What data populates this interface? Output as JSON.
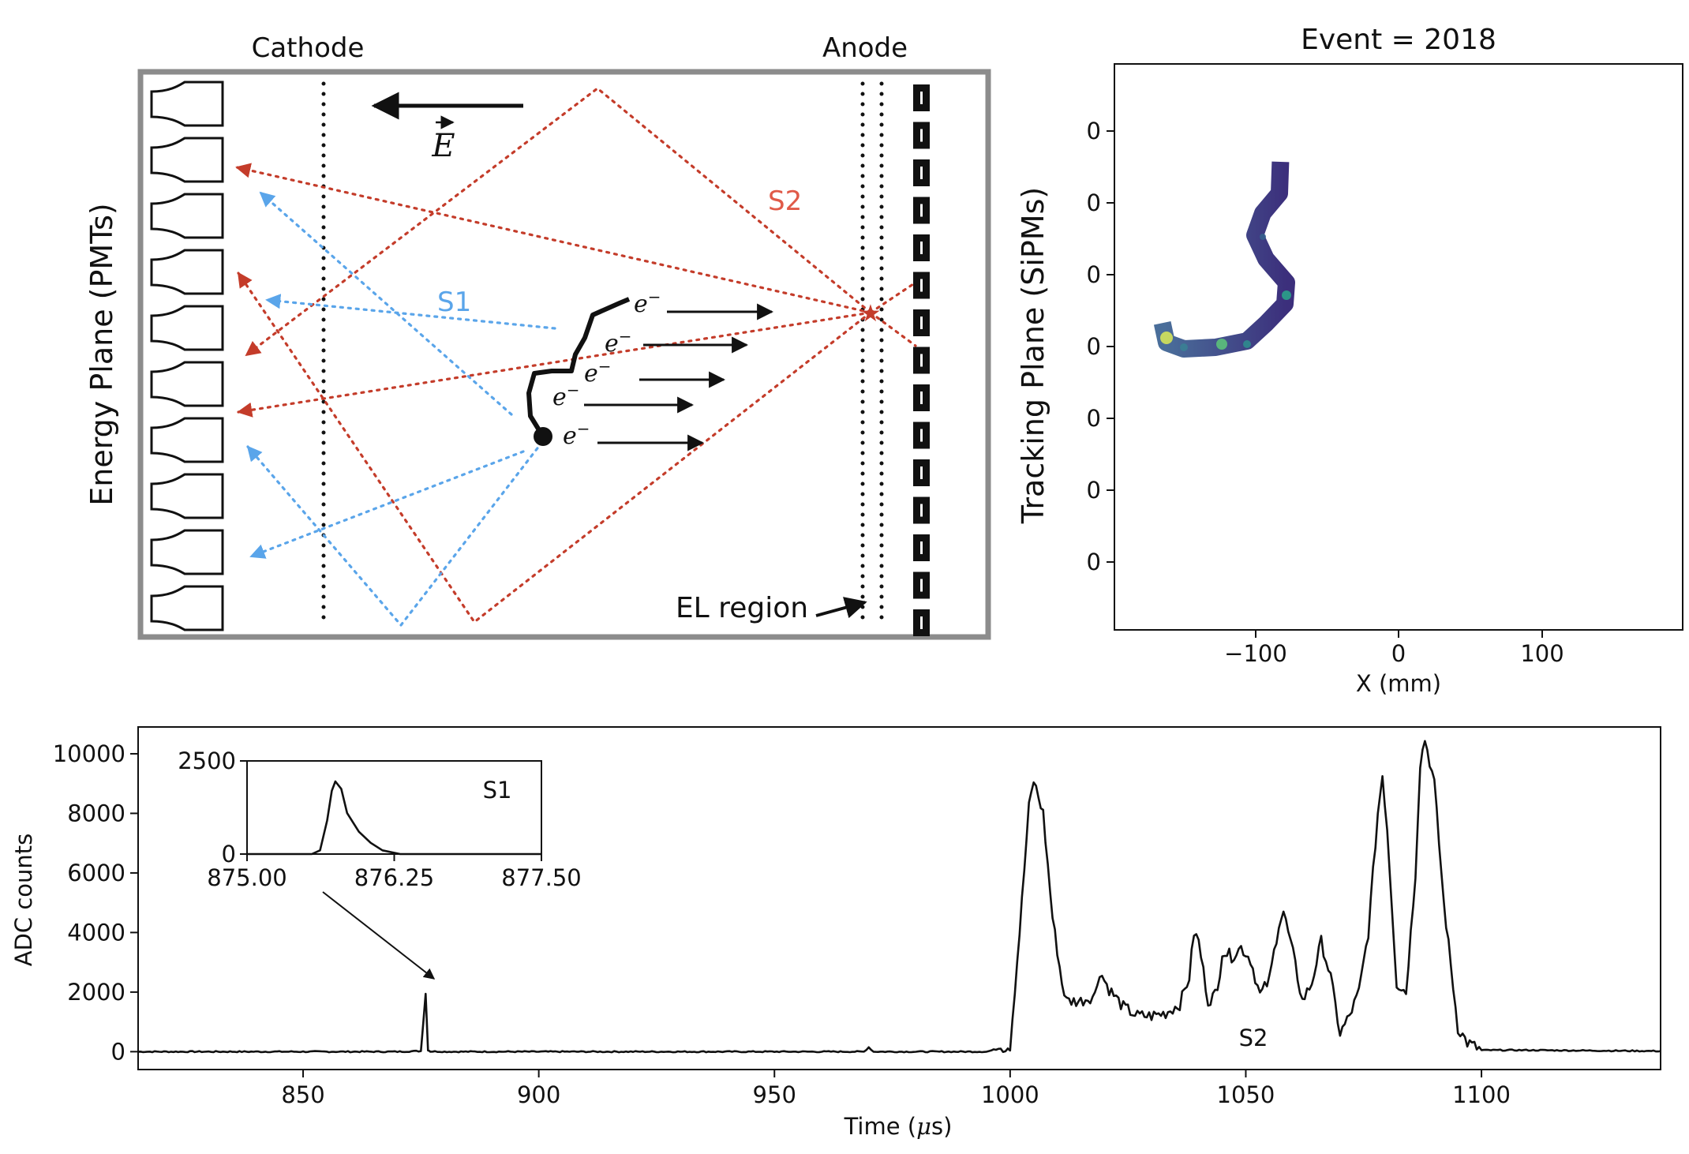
{
  "schematic": {
    "cathode_label": "Cathode",
    "anode_label": "Anode",
    "energy_plane_label": "Energy Plane (PMTs)",
    "s1_label": "S1",
    "s2_label": "S2",
    "el_region_label": "EL region",
    "field_symbol": "E",
    "electron_symbol": "e",
    "electron_superscript": "−",
    "colors": {
      "s1": "#5aa5ea",
      "s2": "#c43c2a",
      "frame": "#8c8c8c"
    }
  },
  "tracking": {
    "title": "Event = 2018",
    "ylabel": "Tracking Plane (SiPMs)",
    "xlabel": "X (mm)",
    "xticks": [
      "−100",
      "0",
      "100"
    ],
    "yticks": [
      "0",
      "0",
      "0",
      "0",
      "0",
      "0",
      "0"
    ]
  },
  "waveform": {
    "ylabel": "ADC counts",
    "xlabel_prefix": "Time (",
    "xlabel_mu": "μ",
    "xlabel_suffix": "s)",
    "s2_label": "S2",
    "xticks": [
      "850",
      "900",
      "950",
      "1000",
      "1050",
      "1100"
    ],
    "yticks": [
      "0",
      "2000",
      "4000",
      "6000",
      "8000",
      "10000"
    ]
  },
  "inset": {
    "label": "S1",
    "xticks": [
      "875.00",
      "876.25",
      "877.50"
    ],
    "yticks": [
      "0",
      "2500"
    ]
  },
  "chart_data": [
    {
      "type": "line",
      "name": "waveform",
      "xlabel": "Time (μs)",
      "ylabel": "ADC counts",
      "xlim": [
        815,
        1138
      ],
      "ylim": [
        -600,
        10900
      ],
      "grid": false,
      "x": [
        815,
        870,
        875,
        876,
        876.5,
        877,
        880,
        969,
        970,
        971,
        995,
        1000,
        1002,
        1004,
        1005,
        1007,
        1009,
        1011,
        1012,
        1015,
        1018,
        1019,
        1021,
        1024,
        1027,
        1030,
        1033,
        1036,
        1038,
        1039,
        1040,
        1042,
        1044,
        1045,
        1047,
        1049,
        1051,
        1053,
        1055,
        1057,
        1058,
        1060,
        1062,
        1064,
        1066,
        1068,
        1070,
        1072,
        1074,
        1076,
        1078,
        1079,
        1080,
        1082,
        1084,
        1086,
        1087,
        1088,
        1090,
        1092,
        1095,
        1097,
        1100,
        1110,
        1138
      ],
      "y": [
        0,
        0,
        20,
        1950,
        60,
        10,
        0,
        0,
        150,
        0,
        0,
        200,
        4000,
        8200,
        9100,
        8000,
        4500,
        2300,
        1700,
        1700,
        1900,
        2700,
        2100,
        1500,
        1200,
        1200,
        1300,
        1600,
        2500,
        4000,
        3700,
        1700,
        2000,
        3400,
        3200,
        3500,
        3100,
        1900,
        2400,
        4300,
        4700,
        3300,
        1700,
        2300,
        3700,
        2500,
        600,
        1200,
        2000,
        4000,
        8000,
        9300,
        7500,
        2300,
        2000,
        6000,
        9700,
        10500,
        9000,
        5000,
        800,
        300,
        50,
        50,
        20
      ]
    },
    {
      "type": "line",
      "name": "inset S1",
      "xlim": [
        875.0,
        877.5
      ],
      "ylim": [
        0,
        2500
      ],
      "x": [
        875.0,
        875.55,
        875.62,
        875.68,
        875.72,
        875.75,
        875.8,
        875.85,
        875.95,
        876.05,
        876.15,
        876.3,
        877.5
      ],
      "y": [
        0,
        0,
        100,
        900,
        1700,
        1950,
        1750,
        1100,
        600,
        300,
        100,
        0,
        0
      ]
    },
    {
      "type": "heatmap",
      "name": "tracking",
      "xlabel": "X (mm)",
      "ylabel": "Tracking Plane (SiPMs)",
      "xlim": [
        -195,
        195
      ],
      "xticks": [
        -100,
        0,
        100
      ],
      "colormap": "viridis"
    }
  ]
}
